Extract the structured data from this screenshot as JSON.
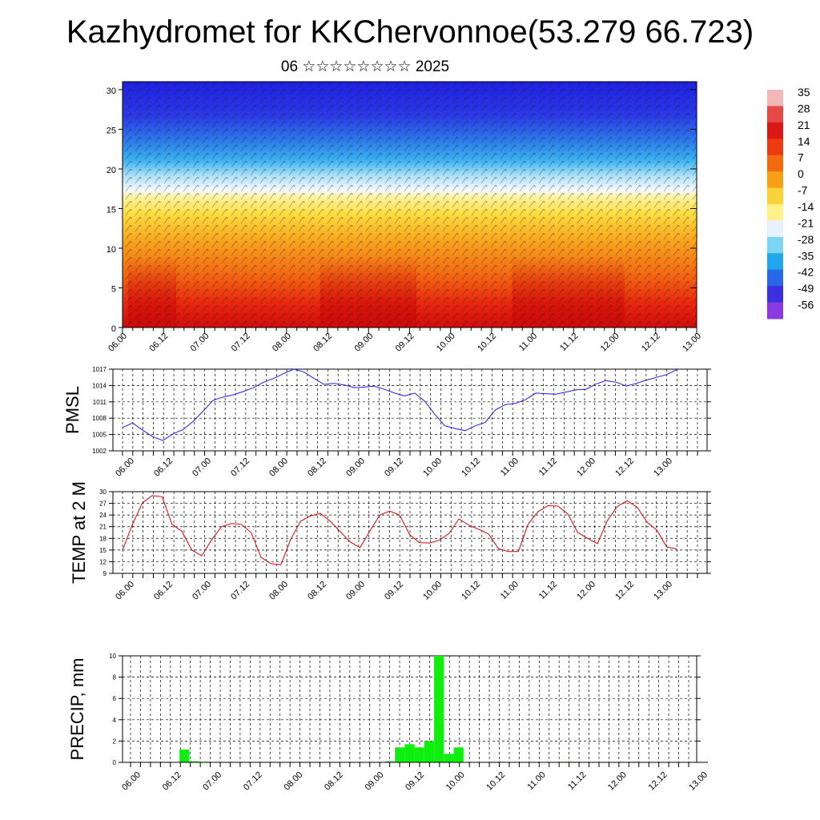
{
  "header": {
    "title": "Kazhydromet for KKChervonnoe(53.279 66.723)",
    "subtitle": "06 ☆☆☆☆☆☆☆☆ 2025"
  },
  "time_labels": [
    "06.00",
    "06.12",
    "07.00",
    "07.12",
    "08.00",
    "08.12",
    "09.00",
    "09.12",
    "10.00",
    "10.12",
    "11.00",
    "11.12",
    "12.00",
    "12.12",
    "13.00"
  ],
  "chart_data": [
    {
      "id": "cross-section",
      "type": "heatmap",
      "title": "",
      "ylabel": "",
      "ylim": [
        0,
        31
      ],
      "yticks": [
        0,
        5,
        10,
        15,
        20,
        25,
        30
      ],
      "x_range": [
        "06.00",
        "13.00"
      ],
      "colorbar_labels": [
        "35",
        "28",
        "21",
        "14",
        "7",
        "0",
        "-7",
        "-14",
        "-21",
        "-28",
        "-35",
        "-42",
        "-49",
        "-56"
      ],
      "colorbar_colors": [
        "#f2b8b8",
        "#e64848",
        "#d91818",
        "#ee3a10",
        "#f46a10",
        "#f7a018",
        "#fad23a",
        "#fff08a",
        "#e6f3ff",
        "#7ad4f2",
        "#22a6ee",
        "#2a66e8",
        "#3a30e0",
        "#8a3ae0"
      ]
    },
    {
      "id": "pmsl",
      "type": "line",
      "ylabel": "PMSL",
      "ylim": [
        1002,
        1017
      ],
      "yticks": [
        1002,
        1005,
        1008,
        1011,
        1014,
        1017
      ],
      "color": "#1a1aff",
      "values": [
        1006.3,
        1007.1,
        1005.8,
        1004.6,
        1003.9,
        1005.1,
        1005.9,
        1007.4,
        1009.3,
        1011.3,
        1011.9,
        1012.3,
        1012.9,
        1013.6,
        1014.6,
        1015.3,
        1016.2,
        1017.0,
        1016.5,
        1015.3,
        1014.2,
        1014.4,
        1014.1,
        1013.6,
        1013.7,
        1013.9,
        1013.3,
        1012.6,
        1012.1,
        1012.6,
        1011.1,
        1008.7,
        1006.6,
        1006.1,
        1005.7,
        1006.6,
        1007.2,
        1009.5,
        1010.5,
        1010.7,
        1011.4,
        1012.6,
        1012.5,
        1012.4,
        1012.8,
        1013.2,
        1013.3,
        1014.3,
        1014.9,
        1014.6,
        1013.9,
        1014.4,
        1015.0,
        1015.5,
        1016.0,
        1016.9
      ]
    },
    {
      "id": "temp2m",
      "type": "line",
      "ylabel": "TEMP at 2 M",
      "ylim": [
        9,
        30
      ],
      "yticks": [
        9,
        12,
        15,
        18,
        21,
        24,
        27,
        30
      ],
      "color": "#e00000",
      "values": [
        15.0,
        21.6,
        27.1,
        29.0,
        28.7,
        21.6,
        19.8,
        15.0,
        13.5,
        17.6,
        21.0,
        21.8,
        21.6,
        19.5,
        13.1,
        11.5,
        11.2,
        17.8,
        22.4,
        23.8,
        24.4,
        22.4,
        19.7,
        17.1,
        15.6,
        19.9,
        24.0,
        25.0,
        24.0,
        19.0,
        16.9,
        16.8,
        17.5,
        19.3,
        23.0,
        21.4,
        20.3,
        19.1,
        15.3,
        14.6,
        14.6,
        21.7,
        24.9,
        26.4,
        26.3,
        24.3,
        19.5,
        18.0,
        16.6,
        22.6,
        26.2,
        27.7,
        26.0,
        22.2,
        20.1,
        15.8,
        15.3
      ]
    },
    {
      "id": "precip",
      "type": "bar",
      "ylabel": "PRECIP, mm",
      "ylim": [
        0,
        10
      ],
      "yticks": [
        0,
        2,
        4,
        6,
        8,
        10
      ],
      "color": "#10ee10",
      "values": [
        0,
        0,
        0,
        0,
        0,
        1.2,
        0.1,
        0.05,
        0,
        0,
        0,
        0,
        0,
        0,
        0,
        0,
        0,
        0,
        0,
        0,
        0,
        0,
        0,
        0,
        0,
        0,
        0.1,
        1.4,
        1.7,
        1.4,
        2.0,
        10.0,
        0.8,
        1.4,
        0,
        0,
        0,
        0.05,
        0,
        0,
        0,
        0,
        0,
        0,
        0.05,
        0.05,
        0,
        0,
        0,
        0,
        0,
        0.05,
        0,
        0,
        0,
        0,
        0
      ]
    }
  ]
}
